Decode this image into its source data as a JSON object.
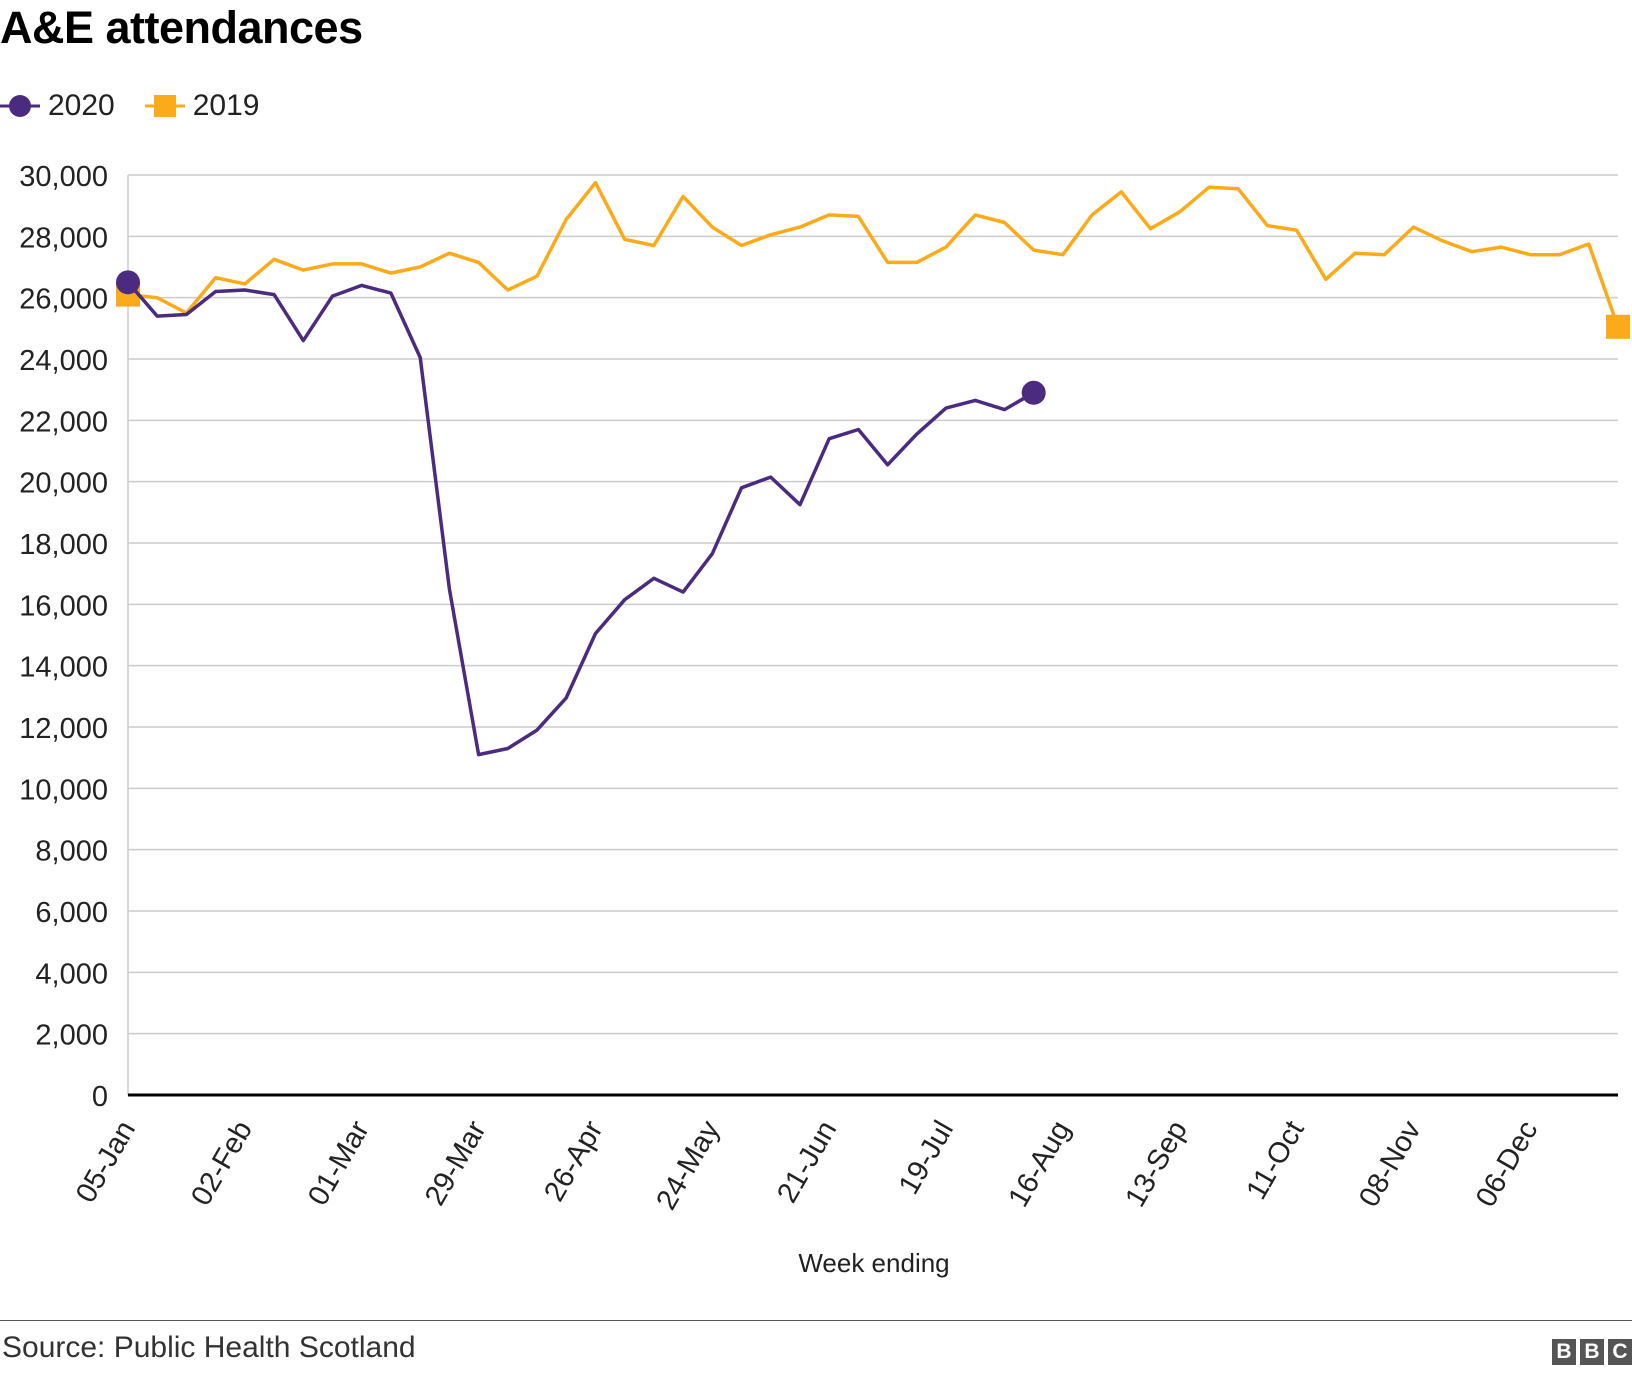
{
  "chart_data": {
    "type": "line",
    "title": "A&E attendances",
    "xlabel": "Week ending",
    "ylabel": "",
    "ylim": [
      0,
      30000
    ],
    "yticks": [
      0,
      2000,
      4000,
      6000,
      8000,
      10000,
      12000,
      14000,
      16000,
      18000,
      20000,
      22000,
      24000,
      26000,
      28000,
      30000
    ],
    "x_tick_labels": [
      "05-Jan",
      "02-Feb",
      "01-Mar",
      "29-Mar",
      "26-Apr",
      "24-May",
      "21-Jun",
      "19-Jul",
      "16-Aug",
      "13-Sep",
      "11-Oct",
      "08-Nov",
      "06-Dec"
    ],
    "x_tick_every_weeks": 4,
    "weeks_total": 52,
    "grid": true,
    "legend_position": "top-left",
    "series": [
      {
        "name": "2020",
        "color": "#4b2b80",
        "marker": "circle",
        "values": [
          26500,
          25400,
          25450,
          26200,
          26250,
          26100,
          24600,
          26050,
          26400,
          26150,
          24050,
          16500,
          11100,
          11300,
          11900,
          12950,
          15050,
          16150,
          16850,
          16400,
          17650,
          19800,
          20150,
          19250,
          21400,
          21700,
          20550,
          21550,
          22400,
          22650,
          22350,
          22900
        ]
      },
      {
        "name": "2019",
        "color": "#fbaa19",
        "marker": "square",
        "values": [
          26100,
          26000,
          25500,
          26650,
          26450,
          27250,
          26900,
          27100,
          27100,
          26800,
          27000,
          27450,
          27150,
          26250,
          26700,
          28550,
          29750,
          27900,
          27700,
          29300,
          28300,
          27700,
          28050,
          28300,
          28700,
          28650,
          27150,
          27150,
          27650,
          28700,
          28450,
          27550,
          27400,
          28700,
          29450,
          28250,
          28800,
          29600,
          29550,
          28350,
          28200,
          26600,
          27450,
          27400,
          28300,
          27850,
          27500,
          27650,
          27400,
          27400,
          27750,
          25050
        ]
      }
    ]
  },
  "legend": {
    "items": [
      {
        "label": "2020",
        "color": "#4b2b80",
        "icon": "circle-marker-icon"
      },
      {
        "label": "2019",
        "color": "#fbaa19",
        "icon": "square-marker-icon"
      }
    ]
  },
  "footer": {
    "source": "Source: Public Health Scotland",
    "logo_letters": [
      "B",
      "B",
      "C"
    ]
  }
}
